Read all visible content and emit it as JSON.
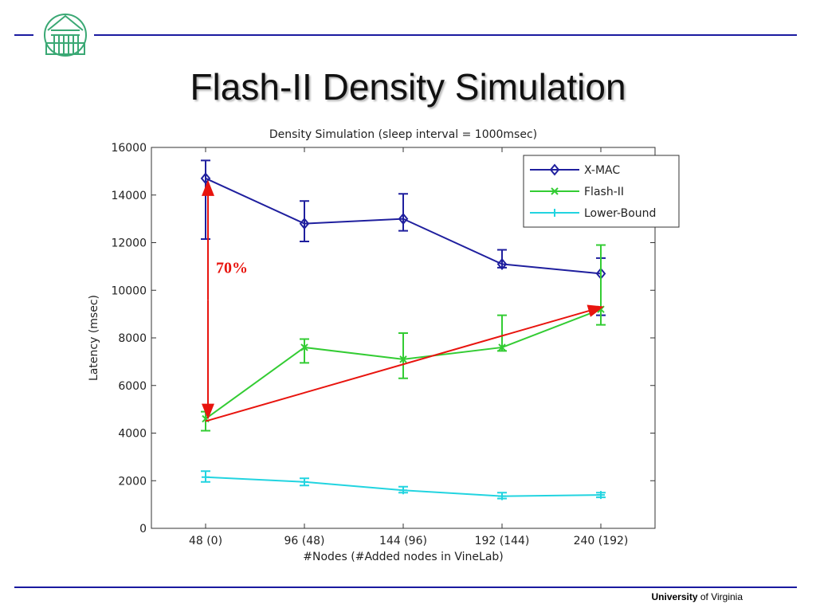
{
  "slide": {
    "title": "Flash-II Density Simulation",
    "footer_bold": "University",
    "footer_rest": " of Virginia",
    "logo": "rotunda-logo-icon",
    "accent_color": "#1a1aa0"
  },
  "chart_data": {
    "type": "line",
    "title": "Density Simulation (sleep interval = 1000msec)",
    "xlabel": "#Nodes (#Added nodes in VineLab)",
    "ylabel": "Latency (msec)",
    "categories": [
      "48 (0)",
      "96 (48)",
      "144 (96)",
      "192 (144)",
      "240 (192)"
    ],
    "ylim": [
      0,
      16000
    ],
    "yticks": [
      0,
      2000,
      4000,
      6000,
      8000,
      10000,
      12000,
      14000,
      16000
    ],
    "grid": false,
    "legend_position": "top-right",
    "series": [
      {
        "name": "X-MAC",
        "color": "#1f1f9e",
        "marker": "diamond",
        "values": [
          14700,
          12800,
          13000,
          11100,
          10700
        ],
        "err_low": [
          12150,
          12050,
          12500,
          10950,
          8950
        ],
        "err_high": [
          15450,
          13750,
          14050,
          11700,
          11350
        ]
      },
      {
        "name": "Flash-II",
        "color": "#33cc33",
        "marker": "x",
        "values": [
          4600,
          7600,
          7100,
          7600,
          9200
        ],
        "err_low": [
          4100,
          6950,
          6300,
          7450,
          8550
        ],
        "err_high": [
          4900,
          7950,
          8200,
          8950,
          11900
        ]
      },
      {
        "name": "Lower-Bound",
        "color": "#22d4e0",
        "marker": "plus",
        "values": [
          2150,
          1950,
          1600,
          1350,
          1400
        ],
        "err_low": [
          1950,
          1800,
          1500,
          1250,
          1300
        ],
        "err_high": [
          2400,
          2100,
          1750,
          1500,
          1500
        ]
      }
    ],
    "annotation": {
      "label": "70%",
      "color": "#e8140e",
      "vertical_arrow": {
        "x_index": 0,
        "from": 14700,
        "to": 4500
      },
      "trend_arrow": {
        "from_index": 0,
        "from_value": 4500,
        "to_index": 4,
        "to_value": 9300
      }
    }
  }
}
